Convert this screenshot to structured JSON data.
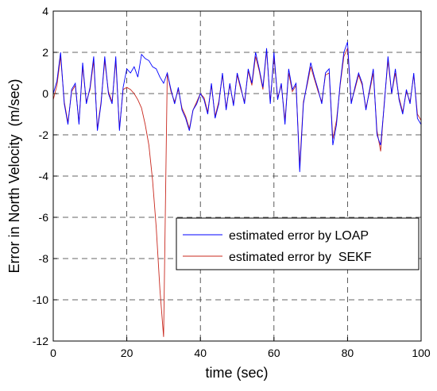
{
  "chart_data": {
    "type": "line",
    "xlabel": "time (sec)",
    "ylabel": "Error in North Velocity  (m/sec)",
    "x": [
      0,
      1,
      2,
      3,
      4,
      5,
      6,
      7,
      8,
      9,
      10,
      11,
      12,
      13,
      14,
      15,
      16,
      17,
      18,
      19,
      20,
      21,
      22,
      23,
      24,
      25,
      26,
      27,
      28,
      29,
      30,
      31,
      32,
      33,
      34,
      35,
      36,
      37,
      38,
      39,
      40,
      41,
      42,
      43,
      44,
      45,
      46,
      47,
      48,
      49,
      50,
      51,
      52,
      53,
      54,
      55,
      56,
      57,
      58,
      59,
      60,
      61,
      62,
      63,
      64,
      65,
      66,
      67,
      68,
      69,
      70,
      71,
      72,
      73,
      74,
      75,
      76,
      77,
      78,
      79,
      80,
      81,
      82,
      83,
      84,
      85,
      86,
      87,
      88,
      89,
      90,
      91,
      92,
      93,
      94,
      95,
      96,
      97,
      98,
      99,
      100
    ],
    "series": [
      {
        "name": "estimated error by LOAP",
        "color": "#0000ff",
        "values": [
          0,
          0.6,
          2,
          -0.5,
          -1.5,
          0.2,
          0.5,
          -1.5,
          1.5,
          -0.5,
          0.3,
          1.8,
          -1.8,
          -0.5,
          1.8,
          0,
          -0.5,
          1.8,
          -1.8,
          0.3,
          1.2,
          1.0,
          1.3,
          0.8,
          1.9,
          1.7,
          1.6,
          1.3,
          1.2,
          0.8,
          0.5,
          1.0,
          0.2,
          -0.5,
          0.3,
          -0.8,
          -1.2,
          -1.8,
          -0.8,
          -0.5,
          0,
          -0.3,
          -1.0,
          0.5,
          -1.2,
          -0.5,
          1.0,
          -0.8,
          0.5,
          -0.6,
          1.0,
          0.3,
          -0.5,
          1.2,
          0.5,
          2.0,
          1.2,
          0.3,
          2.2,
          -0.5,
          2.0,
          -0.3,
          0.5,
          -1.5,
          1.2,
          0.2,
          0.5,
          -3.8,
          -0.5,
          0.5,
          1.5,
          0.8,
          0.2,
          -0.5,
          1.0,
          1.2,
          -2.5,
          -1.5,
          0.5,
          2.0,
          2.5,
          -0.5,
          0.3,
          1.0,
          0.5,
          -0.8,
          0.2,
          1.2,
          -2.0,
          -2.5,
          -0.5,
          1.8,
          0,
          1.2,
          -0.3,
          -1.0,
          0.2,
          -0.5,
          1.0,
          -1.2,
          -1.5
        ]
      },
      {
        "name": "estimated error by  SEKF",
        "color": "#c8281e",
        "values": [
          -0.3,
          0.4,
          1.8,
          -0.4,
          -1.4,
          0.1,
          0.4,
          -1.4,
          1.3,
          -0.4,
          0.2,
          1.6,
          -1.7,
          -0.4,
          1.6,
          0.1,
          -0.4,
          1.6,
          -1.7,
          0.2,
          0.3,
          0.2,
          0,
          -0.3,
          -0.7,
          -1.5,
          -2.5,
          -4.2,
          -6.5,
          -9.5,
          -11.8,
          1.0,
          0.1,
          -0.4,
          0.2,
          -0.7,
          -1.1,
          -1.7,
          -0.8,
          -0.4,
          0,
          -0.2,
          -0.9,
          0.4,
          -1.1,
          -0.4,
          0.9,
          -0.7,
          0.4,
          -0.5,
          0.9,
          0.2,
          -0.4,
          1.1,
          0.4,
          1.8,
          1.1,
          0.2,
          2.1,
          -0.4,
          1.8,
          -0.2,
          0.4,
          -1.3,
          1.0,
          0.1,
          0.4,
          -3.5,
          -0.4,
          0.4,
          1.3,
          0.7,
          0.1,
          -0.4,
          0.9,
          1.0,
          -2.2,
          -1.3,
          0.4,
          1.8,
          2.2,
          -0.4,
          0.2,
          0.9,
          0.4,
          -0.7,
          0.1,
          1.0,
          -1.8,
          -2.8,
          -0.4,
          1.6,
          0,
          1.0,
          -0.2,
          -0.9,
          0.1,
          -0.4,
          0.9,
          -1.0,
          -1.3
        ]
      }
    ],
    "xlim": [
      0,
      100
    ],
    "xticks": [
      0,
      20,
      40,
      60,
      80,
      100
    ],
    "ylim": [
      -12,
      4
    ],
    "yticks": [
      -12,
      -10,
      -8,
      -6,
      -4,
      -2,
      0,
      2,
      4
    ],
    "grid": true
  }
}
